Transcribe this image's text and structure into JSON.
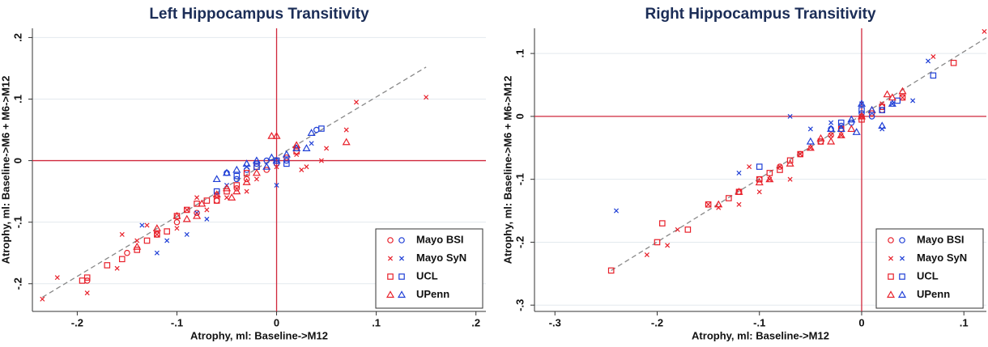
{
  "chart_data": [
    {
      "type": "scatter",
      "title": "Left Hippocampus Transitivity",
      "x_label": "Atrophy, ml: Baseline->M12",
      "y_label": "Atrophy, ml: Baseline->M6 + M6->M12",
      "xlim": [
        -0.245,
        0.21
      ],
      "ylim": [
        -0.245,
        0.215
      ],
      "xticks": [
        {
          "value": -0.2,
          "label": "-.2"
        },
        {
          "value": -0.1,
          "label": "-.1"
        },
        0,
        {
          "value": 0.1,
          "label": ".1"
        },
        {
          "value": 0.2,
          "label": ".2"
        }
      ],
      "yticks": [
        {
          "value": -0.2,
          "label": "-.2"
        },
        {
          "value": -0.1,
          "label": "-.1"
        },
        0,
        {
          "value": 0.1,
          "label": ".1"
        },
        {
          "value": 0.2,
          "label": ".2"
        }
      ],
      "grid": true,
      "legend": "bottom-right",
      "reference_lines": {
        "x": 0,
        "y": 0,
        "color": "#d0283c"
      },
      "diagonal": {
        "x": [
          -0.235,
          0.15
        ],
        "y": [
          -0.222,
          0.152
        ],
        "color": "#888888"
      },
      "series": [
        {
          "name": "Mayo BSI",
          "marker": "circle",
          "groups": [
            {
              "color": "#e8202a",
              "x": [
                -0.19,
                -0.15,
                -0.12,
                -0.1,
                -0.08,
                -0.06,
                -0.04,
                -0.03,
                -0.01,
                0.01,
                0.02
              ],
              "y": [
                -0.195,
                -0.15,
                -0.12,
                -0.1,
                -0.085,
                -0.065,
                -0.045,
                -0.03,
                -0.015,
                0.005,
                0.02
              ]
            },
            {
              "color": "#1f3fd6",
              "x": [
                -0.05,
                -0.03,
                -0.02,
                -0.01,
                0.0,
                0.01,
                -0.04,
                0.04
              ],
              "y": [
                -0.02,
                -0.015,
                -0.005,
                0.0,
                -0.005,
                0.0,
                -0.03,
                0.05
              ]
            }
          ]
        },
        {
          "name": "Mayo SyN",
          "marker": "x",
          "groups": [
            {
              "color": "#e8202a",
              "x": [
                -0.235,
                -0.22,
                -0.19,
                -0.155,
                -0.14,
                -0.13,
                -0.12,
                -0.1,
                -0.09,
                -0.07,
                -0.06,
                -0.05,
                -0.03,
                -0.02,
                0.0,
                0.02,
                0.03,
                0.045,
                0.05,
                0.07,
                0.08,
                0.15,
                -0.16,
                -0.08,
                0.025
              ],
              "y": [
                -0.225,
                -0.19,
                -0.215,
                -0.12,
                -0.13,
                -0.105,
                -0.12,
                -0.11,
                -0.08,
                -0.08,
                -0.055,
                -0.06,
                -0.05,
                -0.03,
                -0.01,
                0.01,
                -0.01,
                0.0,
                0.02,
                0.05,
                0.095,
                0.103,
                -0.175,
                -0.06,
                -0.015
              ]
            },
            {
              "color": "#1f3fd6",
              "x": [
                -0.135,
                -0.11,
                -0.09,
                -0.07,
                -0.08,
                -0.05,
                -0.03,
                0.0,
                0.035,
                -0.12
              ],
              "y": [
                -0.105,
                -0.13,
                -0.12,
                -0.095,
                -0.085,
                -0.04,
                -0.01,
                -0.04,
                0.028,
                -0.15
              ]
            }
          ]
        },
        {
          "name": "UCL",
          "marker": "square",
          "groups": [
            {
              "color": "#e8202a",
              "x": [
                -0.195,
                -0.19,
                -0.17,
                -0.155,
                -0.14,
                -0.13,
                -0.12,
                -0.11,
                -0.1,
                -0.09,
                -0.08,
                -0.07,
                -0.06,
                -0.05,
                -0.04,
                -0.03,
                -0.02,
                0.0,
                0.02
              ],
              "y": [
                -0.195,
                -0.19,
                -0.17,
                -0.16,
                -0.145,
                -0.13,
                -0.12,
                -0.115,
                -0.09,
                -0.08,
                -0.07,
                -0.065,
                -0.065,
                -0.05,
                -0.04,
                -0.02,
                -0.01,
                0.0,
                0.015
              ]
            },
            {
              "color": "#1f3fd6",
              "x": [
                -0.04,
                -0.02,
                0.0,
                0.01,
                0.045,
                -0.06
              ],
              "y": [
                -0.025,
                -0.01,
                0.0,
                -0.005,
                0.052,
                -0.05
              ]
            }
          ]
        },
        {
          "name": "UPenn",
          "marker": "triangle",
          "groups": [
            {
              "color": "#e8202a",
              "x": [
                -0.14,
                -0.12,
                -0.1,
                -0.09,
                -0.08,
                -0.075,
                -0.06,
                -0.05,
                -0.045,
                -0.04,
                -0.03,
                -0.02,
                -0.005,
                0.0,
                0.02,
                0.07
              ],
              "y": [
                -0.14,
                -0.11,
                -0.09,
                -0.095,
                -0.09,
                -0.07,
                -0.055,
                -0.045,
                -0.06,
                -0.05,
                -0.035,
                -0.02,
                0.04,
                0.04,
                0.025,
                0.03
              ]
            },
            {
              "color": "#1f3fd6",
              "x": [
                -0.05,
                -0.04,
                -0.03,
                -0.02,
                -0.01,
                0.0,
                0.01,
                -0.005,
                0.02,
                0.03,
                -0.06,
                0.035
              ],
              "y": [
                -0.02,
                -0.015,
                -0.005,
                0.0,
                -0.01,
                0.0,
                0.01,
                0.005,
                0.02,
                0.02,
                -0.03,
                0.045
              ]
            }
          ]
        }
      ]
    },
    {
      "type": "scatter",
      "title": "Right Hippocampus Transitivity",
      "x_label": "Atrophy, ml: Baseline->M12",
      "y_label": "Atrophy, ml: Baseline->M6 + M6->M12",
      "xlim": [
        -0.32,
        0.122
      ],
      "ylim": [
        -0.31,
        0.14
      ],
      "xticks": [
        {
          "value": -0.3,
          "label": "-.3"
        },
        {
          "value": -0.2,
          "label": "-.2"
        },
        {
          "value": -0.1,
          "label": "-.1"
        },
        0,
        {
          "value": 0.1,
          "label": ".1"
        }
      ],
      "yticks": [
        {
          "value": -0.3,
          "label": "-.3"
        },
        {
          "value": -0.2,
          "label": "-.2"
        },
        {
          "value": -0.1,
          "label": "-.1"
        },
        0,
        {
          "value": 0.1,
          "label": ".1"
        }
      ],
      "grid": true,
      "legend": "bottom-right",
      "reference_lines": {
        "x": 0,
        "y": 0,
        "color": "#d0283c"
      },
      "diagonal": {
        "x": [
          -0.245,
          0.122
        ],
        "y": [
          -0.245,
          0.125
        ],
        "color": "#888888"
      },
      "series": [
        {
          "name": "Mayo BSI",
          "marker": "circle",
          "groups": [
            {
              "color": "#e8202a",
              "x": [
                -0.12,
                -0.1,
                -0.08,
                -0.06,
                -0.04,
                -0.02,
                0.0,
                0.02,
                -0.03,
                0.01
              ],
              "y": [
                -0.12,
                -0.1,
                -0.08,
                -0.06,
                -0.04,
                -0.02,
                0.0,
                0.01,
                -0.03,
                0.005
              ]
            },
            {
              "color": "#1f3fd6",
              "x": [
                -0.03,
                -0.01,
                0.0,
                0.01,
                0.02,
                -0.02
              ],
              "y": [
                -0.02,
                -0.01,
                0.005,
                0.0,
                0.015,
                -0.015
              ]
            }
          ]
        },
        {
          "name": "Mayo SyN",
          "marker": "x",
          "groups": [
            {
              "color": "#e8202a",
              "x": [
                -0.21,
                -0.19,
                -0.18,
                -0.15,
                -0.14,
                -0.12,
                -0.1,
                -0.09,
                -0.08,
                -0.06,
                -0.05,
                -0.03,
                -0.02,
                0.0,
                0.02,
                0.04,
                0.07,
                0.12,
                -0.11,
                -0.07
              ],
              "y": [
                -0.22,
                -0.205,
                -0.18,
                -0.14,
                -0.145,
                -0.14,
                -0.12,
                -0.1,
                -0.08,
                -0.06,
                -0.05,
                -0.03,
                -0.03,
                0.0,
                0.02,
                0.03,
                0.095,
                0.135,
                -0.08,
                -0.1
              ]
            },
            {
              "color": "#1f3fd6",
              "x": [
                -0.24,
                -0.12,
                -0.07,
                -0.05,
                -0.03,
                0.02,
                0.03,
                0.05,
                0.065,
                0.0
              ],
              "y": [
                -0.15,
                -0.09,
                0.0,
                -0.02,
                -0.01,
                -0.02,
                0.02,
                0.025,
                0.088,
                0.02
              ]
            }
          ]
        },
        {
          "name": "UCL",
          "marker": "square",
          "groups": [
            {
              "color": "#e8202a",
              "x": [
                -0.245,
                -0.2,
                -0.195,
                -0.17,
                -0.15,
                -0.13,
                -0.12,
                -0.1,
                -0.09,
                -0.08,
                -0.07,
                -0.06,
                -0.04,
                -0.02,
                0.0,
                0.02,
                0.04,
                0.09
              ],
              "y": [
                -0.245,
                -0.2,
                -0.17,
                -0.18,
                -0.14,
                -0.13,
                -0.12,
                -0.1,
                -0.09,
                -0.085,
                -0.07,
                -0.06,
                -0.04,
                -0.02,
                -0.005,
                0.015,
                0.03,
                0.085
              ]
            },
            {
              "color": "#1f3fd6",
              "x": [
                -0.02,
                0.0,
                0.02,
                0.035,
                0.07,
                -0.1
              ],
              "y": [
                -0.01,
                0.01,
                0.01,
                0.025,
                0.065,
                -0.08
              ]
            }
          ]
        },
        {
          "name": "UPenn",
          "marker": "triangle",
          "groups": [
            {
              "color": "#e8202a",
              "x": [
                -0.14,
                -0.12,
                -0.1,
                -0.09,
                -0.07,
                -0.05,
                -0.04,
                -0.03,
                -0.02,
                -0.01,
                0.0,
                0.01,
                0.03,
                0.04,
                0.025
              ],
              "y": [
                -0.14,
                -0.12,
                -0.105,
                -0.1,
                -0.075,
                -0.05,
                -0.035,
                -0.04,
                -0.03,
                -0.02,
                0.0,
                0.01,
                0.03,
                0.04,
                0.035
              ]
            },
            {
              "color": "#1f3fd6",
              "x": [
                -0.05,
                -0.03,
                -0.02,
                -0.01,
                0.0,
                0.01,
                0.03,
                0.02,
                -0.005
              ],
              "y": [
                -0.04,
                -0.02,
                -0.02,
                -0.005,
                0.02,
                0.01,
                0.02,
                -0.015,
                -0.025
              ]
            }
          ]
        }
      ]
    }
  ]
}
